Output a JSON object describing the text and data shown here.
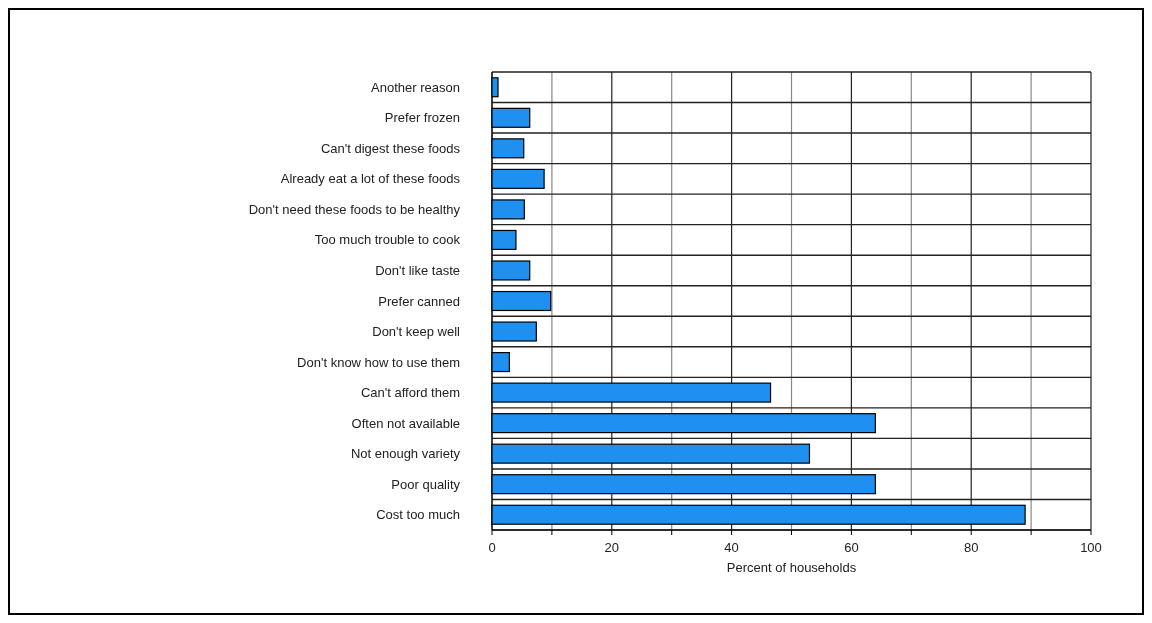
{
  "chart_data": {
    "type": "bar",
    "orientation": "horizontal",
    "xlabel": "Percent of households",
    "categories": [
      "Another reason",
      "Prefer frozen",
      "Can't digest these foods",
      "Already eat a lot of these foods",
      "Don't need these foods to be healthy",
      "Too much trouble to cook",
      "Don't like taste",
      "Prefer canned",
      "Don't keep well",
      "Don't know how to use them",
      "Can't afford them",
      "Often not available",
      "Not enough variety",
      "Poor quality",
      "Cost too much"
    ],
    "values": [
      1,
      6.3,
      5.3,
      8.7,
      5.4,
      4,
      6.3,
      9.8,
      7.4,
      2.9,
      46.5,
      64,
      53,
      64,
      89
    ],
    "color": "#2090f0",
    "xlim": [
      0,
      100
    ],
    "xticks": [
      0,
      {
        "value": 10,
        "label": null
      },
      20,
      {
        "value": 30,
        "label": null
      },
      40,
      {
        "value": 50,
        "label": null
      },
      60,
      {
        "value": 70,
        "label": null
      },
      80,
      {
        "value": 90,
        "label": null
      },
      100
    ],
    "grid": true
  }
}
